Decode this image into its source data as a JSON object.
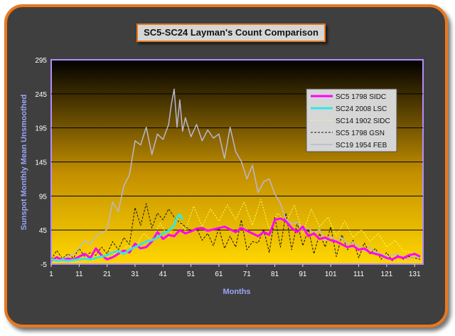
{
  "chart_data": {
    "type": "line",
    "title": "SC5-SC24 Layman's Count Comparison",
    "xlabel": "Months",
    "ylabel": "Sunspot Monthly Mean Unsmoothed",
    "xlim": [
      1,
      134
    ],
    "ylim": [
      -5,
      295
    ],
    "xticks": [
      1,
      11,
      21,
      31,
      41,
      51,
      61,
      71,
      81,
      91,
      101,
      111,
      121,
      131
    ],
    "yticks": [
      -5,
      45,
      95,
      145,
      195,
      245,
      295
    ],
    "grid": "horizontal",
    "legend_position": "top-right",
    "colors": {
      "background_top": "#000000",
      "background_bottom": "#ffd700",
      "frame_border": "#e8781e",
      "plot_border": "#b48cff"
    },
    "series": [
      {
        "name": "SC5   1798 SIDC",
        "color": "#ff00ff",
        "style": "solid",
        "width": 3,
        "x": [
          1,
          3,
          5,
          7,
          9,
          11,
          13,
          15,
          17,
          19,
          21,
          23,
          25,
          27,
          29,
          31,
          33,
          35,
          37,
          39,
          41,
          43,
          45,
          47,
          49,
          51,
          53,
          55,
          57,
          59,
          61,
          63,
          65,
          67,
          69,
          71,
          73,
          75,
          77,
          79,
          81,
          83,
          85,
          87,
          89,
          91,
          93,
          95,
          97,
          99,
          101,
          103,
          105,
          107,
          109,
          111,
          113,
          115,
          117,
          119,
          121,
          123,
          125,
          127,
          129,
          131,
          133
        ],
        "y": [
          0,
          5,
          1,
          3,
          2,
          6,
          10,
          4,
          18,
          8,
          2,
          5,
          10,
          15,
          12,
          25,
          18,
          20,
          28,
          42,
          32,
          38,
          36,
          45,
          40,
          43,
          47,
          48,
          44,
          46,
          48,
          50,
          46,
          42,
          48,
          44,
          40,
          36,
          42,
          38,
          60,
          62,
          58,
          48,
          42,
          50,
          36,
          40,
          32,
          34,
          30,
          28,
          24,
          20,
          22,
          16,
          18,
          12,
          10,
          8,
          4,
          2,
          6,
          4,
          8,
          10,
          6
        ]
      },
      {
        "name": "SC24 2008 LSC",
        "color": "#33e8e0",
        "style": "solid",
        "width": 3,
        "x": [
          1,
          3,
          5,
          7,
          9,
          11,
          13,
          15,
          17,
          19,
          21,
          23,
          25,
          27,
          29,
          31,
          33,
          35,
          37,
          39,
          41,
          43,
          45,
          46,
          47,
          48
        ],
        "y": [
          2,
          0,
          1,
          0,
          1,
          2,
          3,
          2,
          4,
          6,
          8,
          12,
          14,
          10,
          16,
          20,
          24,
          28,
          30,
          34,
          40,
          44,
          52,
          64,
          68,
          60
        ]
      },
      {
        "name": "SC14 1902 SIDC",
        "color": "#ffff66",
        "style": "dotted",
        "width": 1,
        "x": [
          1,
          4,
          7,
          10,
          13,
          16,
          19,
          22,
          25,
          28,
          31,
          34,
          37,
          40,
          43,
          46,
          49,
          52,
          55,
          58,
          61,
          64,
          67,
          70,
          73,
          76,
          79,
          82,
          85,
          88,
          91,
          94,
          97,
          100,
          103,
          106,
          109,
          112,
          115,
          118,
          121,
          124,
          127,
          130,
          133
        ],
        "y": [
          2,
          6,
          1,
          8,
          3,
          12,
          4,
          16,
          6,
          22,
          18,
          40,
          30,
          55,
          34,
          62,
          44,
          80,
          50,
          76,
          58,
          82,
          60,
          86,
          52,
          90,
          46,
          70,
          56,
          82,
          40,
          76,
          50,
          64,
          36,
          58,
          34,
          46,
          28,
          40,
          20,
          30,
          14,
          12,
          8
        ]
      },
      {
        "name": "SC5   1798 GSN",
        "color": "#111111",
        "style": "dashed",
        "width": 1,
        "x": [
          1,
          3,
          5,
          7,
          9,
          11,
          13,
          15,
          17,
          19,
          21,
          23,
          25,
          27,
          29,
          31,
          33,
          35,
          37,
          39,
          41,
          43,
          45,
          47,
          49,
          51,
          53,
          55,
          57,
          59,
          61,
          63,
          65,
          67,
          69,
          71,
          73,
          75,
          77,
          79,
          81,
          83,
          85,
          87,
          89,
          91,
          93,
          95,
          97,
          99,
          101,
          103,
          105,
          107,
          109,
          111,
          113,
          115,
          117,
          119,
          121,
          123,
          125,
          127,
          129,
          131,
          133
        ],
        "y": [
          2,
          15,
          3,
          10,
          4,
          18,
          6,
          12,
          8,
          20,
          10,
          28,
          16,
          34,
          24,
          78,
          52,
          84,
          48,
          70,
          60,
          76,
          64,
          56,
          50,
          44,
          48,
          30,
          40,
          22,
          48,
          18,
          36,
          20,
          60,
          16,
          28,
          26,
          46,
          12,
          64,
          20,
          70,
          16,
          56,
          22,
          46,
          10,
          40,
          20,
          50,
          6,
          38,
          16,
          30,
          4,
          26,
          10,
          18,
          2,
          12,
          0,
          8,
          2,
          6,
          4,
          2
        ]
      },
      {
        "name": "SC19 1954 FEB",
        "color": "#b8b8d2",
        "style": "solid",
        "width": 1.5,
        "x": [
          1,
          3,
          5,
          7,
          9,
          11,
          13,
          15,
          17,
          19,
          21,
          23,
          25,
          27,
          29,
          31,
          33,
          35,
          37,
          39,
          41,
          43,
          44,
          45,
          46,
          47,
          48,
          49,
          51,
          53,
          55,
          57,
          59,
          61,
          63,
          65,
          67,
          69,
          71,
          73,
          75,
          77,
          79,
          81,
          83,
          85,
          87,
          89,
          91,
          93,
          95,
          97,
          99,
          101,
          103,
          105,
          107,
          109,
          111,
          113,
          115,
          117,
          119,
          121,
          123,
          125,
          127,
          129,
          131,
          133
        ],
        "y": [
          2,
          4,
          3,
          6,
          10,
          18,
          30,
          24,
          36,
          40,
          46,
          86,
          72,
          110,
          126,
          176,
          170,
          196,
          156,
          186,
          178,
          200,
          230,
          252,
          196,
          236,
          190,
          210,
          182,
          200,
          176,
          192,
          180,
          186,
          150,
          196,
          160,
          146,
          120,
          140,
          100,
          116,
          120,
          98,
          84,
          60,
          54,
          56,
          46,
          48,
          40,
          46,
          30,
          36,
          28,
          34,
          24,
          26,
          22,
          14,
          20,
          12,
          10,
          6,
          8,
          10,
          4,
          2,
          6,
          4
        ]
      }
    ]
  }
}
